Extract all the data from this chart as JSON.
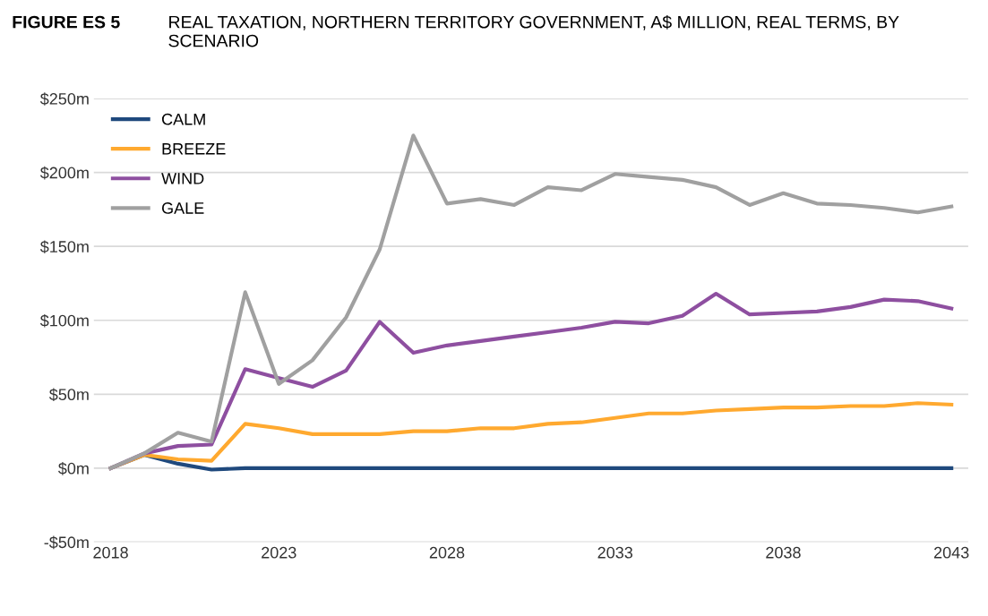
{
  "chart_data": {
    "type": "line",
    "title": "FIGURE ES 5",
    "subtitle": "REAL TAXATION, NORTHERN TERRITORY GOVERNMENT, A$ MILLION, REAL TERMS, BY SCENARIO",
    "x": [
      2018,
      2019,
      2020,
      2021,
      2022,
      2023,
      2024,
      2025,
      2026,
      2027,
      2028,
      2029,
      2030,
      2031,
      2032,
      2033,
      2034,
      2035,
      2036,
      2037,
      2038,
      2039,
      2040,
      2041,
      2042,
      2043
    ],
    "series": [
      {
        "name": "CALM",
        "color": "#1f497d",
        "values": [
          0,
          9,
          3,
          -1,
          0,
          0,
          0,
          0,
          0,
          0,
          0,
          0,
          0,
          0,
          0,
          0,
          0,
          0,
          0,
          0,
          0,
          0,
          0,
          0,
          0,
          0
        ]
      },
      {
        "name": "BREEZE",
        "color": "#ffa92f",
        "values": [
          0,
          9,
          6,
          5,
          30,
          27,
          23,
          23,
          23,
          25,
          25,
          27,
          27,
          30,
          31,
          34,
          37,
          37,
          39,
          40,
          41,
          41,
          42,
          42,
          44,
          43
        ]
      },
      {
        "name": "WIND",
        "color": "#8e4fa0",
        "values": [
          0,
          10,
          15,
          16,
          67,
          61,
          55,
          66,
          99,
          78,
          83,
          86,
          89,
          92,
          95,
          99,
          98,
          103,
          118,
          104,
          105,
          106,
          109,
          114,
          113,
          108
        ]
      },
      {
        "name": "GALE",
        "color": "#a0a0a0",
        "values": [
          0,
          10,
          24,
          18,
          119,
          57,
          73,
          102,
          148,
          225,
          179,
          182,
          178,
          190,
          188,
          199,
          197,
          195,
          190,
          178,
          186,
          179,
          178,
          176,
          173,
          177
        ]
      }
    ],
    "xlim": [
      2017.5,
      2043.5
    ],
    "xticks": [
      2018,
      2023,
      2028,
      2033,
      2038,
      2043
    ],
    "ylim": [
      -50,
      250
    ],
    "yticks": [
      {
        "value": -50,
        "label": "-$50m"
      },
      {
        "value": 0,
        "label": "$0m"
      },
      {
        "value": 50,
        "label": "$50m"
      },
      {
        "value": 100,
        "label": "$100m"
      },
      {
        "value": 150,
        "label": "$150m"
      },
      {
        "value": 200,
        "label": "$200m"
      },
      {
        "value": 250,
        "label": "$250m"
      }
    ],
    "grid": "y",
    "legend": "top left",
    "marker": "none",
    "line_style": "solid"
  }
}
